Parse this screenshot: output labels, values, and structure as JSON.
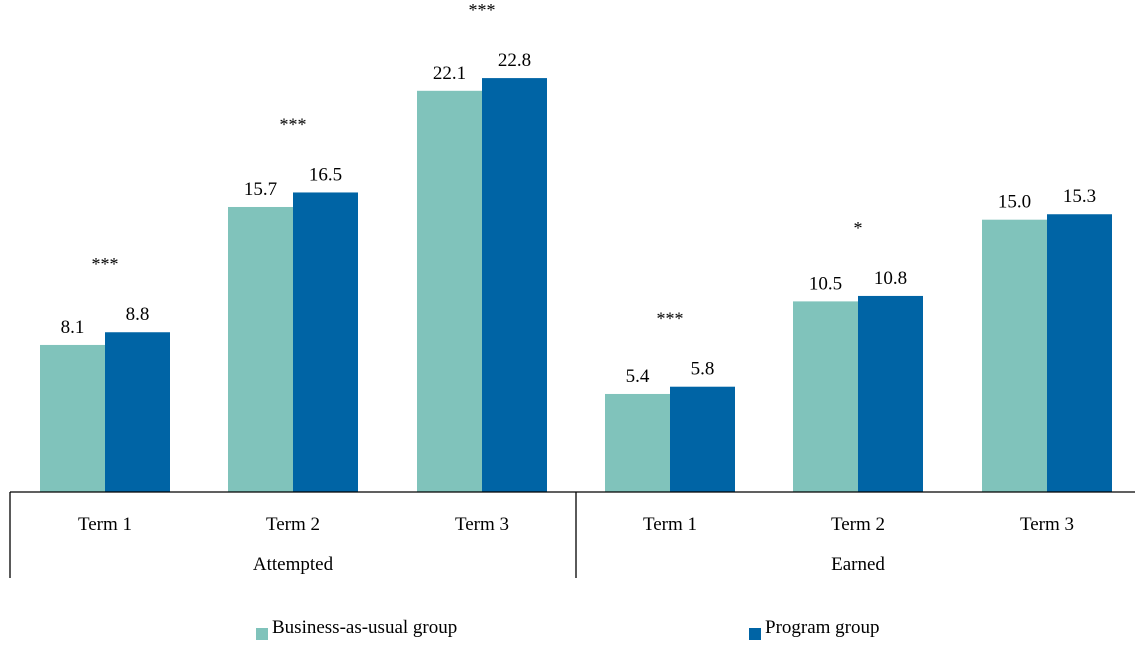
{
  "chart_data": {
    "type": "bar",
    "groups": [
      {
        "label": "Attempted",
        "categories": [
          "Term 1",
          "Term 2",
          "Term 3"
        ]
      },
      {
        "label": "Earned",
        "categories": [
          "Term 1",
          "Term 2",
          "Term 3"
        ]
      }
    ],
    "series": [
      {
        "name": "Business-as-usual group",
        "color": "#80c3bb",
        "values": [
          8.1,
          15.7,
          22.1,
          5.4,
          10.5,
          15.0
        ]
      },
      {
        "name": "Program group",
        "color": "#0064a5",
        "values": [
          8.8,
          16.5,
          22.8,
          5.8,
          10.8,
          15.3
        ]
      }
    ],
    "data_labels": [
      "8.1",
      "8.8",
      "15.7",
      "16.5",
      "22.1",
      "22.8",
      "5.4",
      "5.8",
      "10.5",
      "10.8",
      "15.0",
      "15.3"
    ],
    "significance": [
      "***",
      "***",
      "***",
      "***",
      "*",
      ""
    ],
    "ylim": [
      0,
      26
    ],
    "y_axis_visible": false,
    "grid": false,
    "legend": {
      "position": "bottom",
      "entries": [
        "Business-as-usual group",
        "Program group"
      ]
    }
  }
}
